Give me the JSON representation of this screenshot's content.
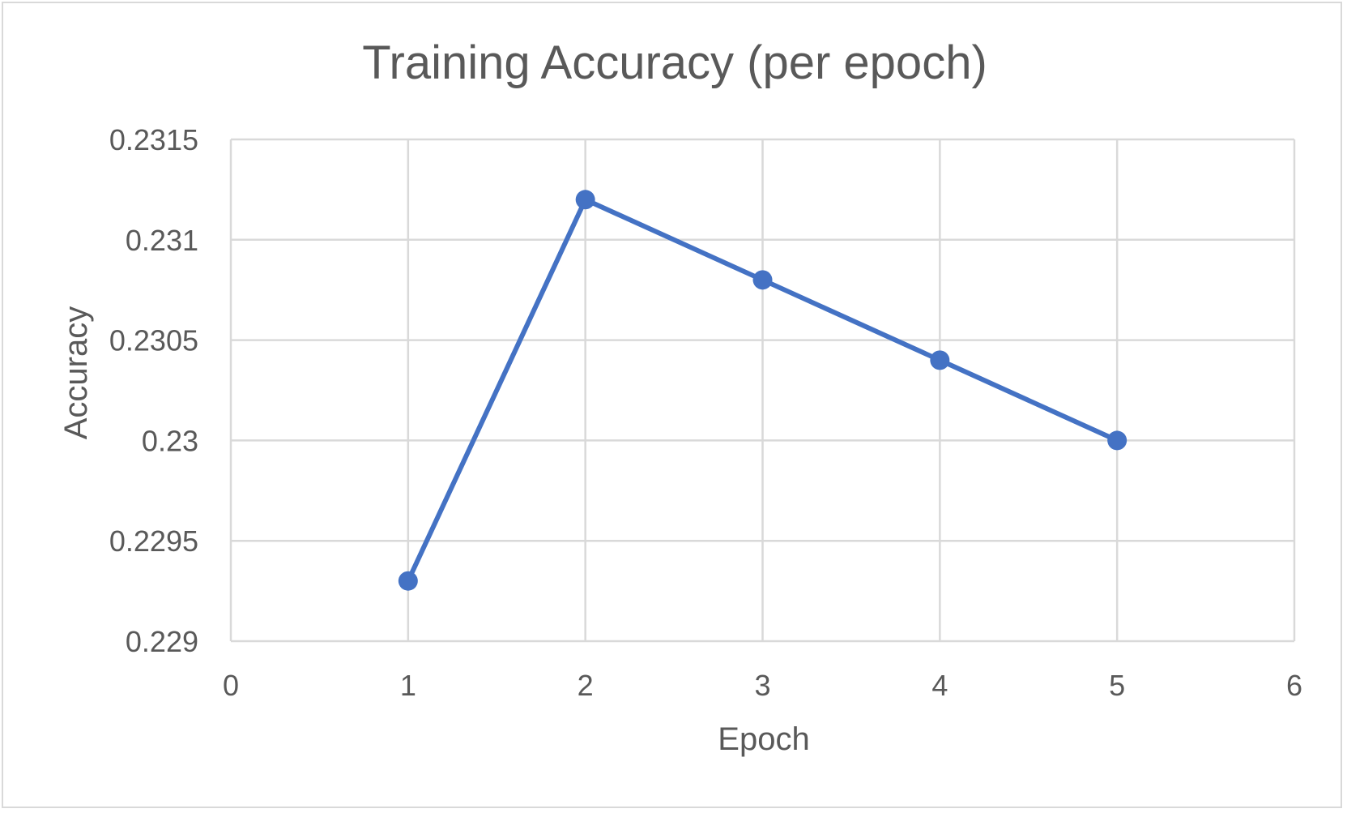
{
  "chart_data": {
    "type": "line",
    "title": "Training Accuracy (per epoch)",
    "xlabel": "Epoch",
    "ylabel": "Accuracy",
    "xlim": [
      0,
      6
    ],
    "ylim": [
      0.229,
      0.2315
    ],
    "x_ticks": [
      "0",
      "1",
      "2",
      "3",
      "4",
      "5",
      "6"
    ],
    "y_ticks": [
      "0.229",
      "0.2295",
      "0.23",
      "0.2305",
      "0.231",
      "0.2315"
    ],
    "grid": true,
    "legend": "none",
    "series": [
      {
        "x": [
          1,
          2,
          3,
          4,
          5
        ],
        "values": [
          0.2293,
          0.2312,
          0.2308,
          0.2304,
          0.23
        ],
        "color": "#4472c4",
        "marker": "circle"
      }
    ]
  }
}
